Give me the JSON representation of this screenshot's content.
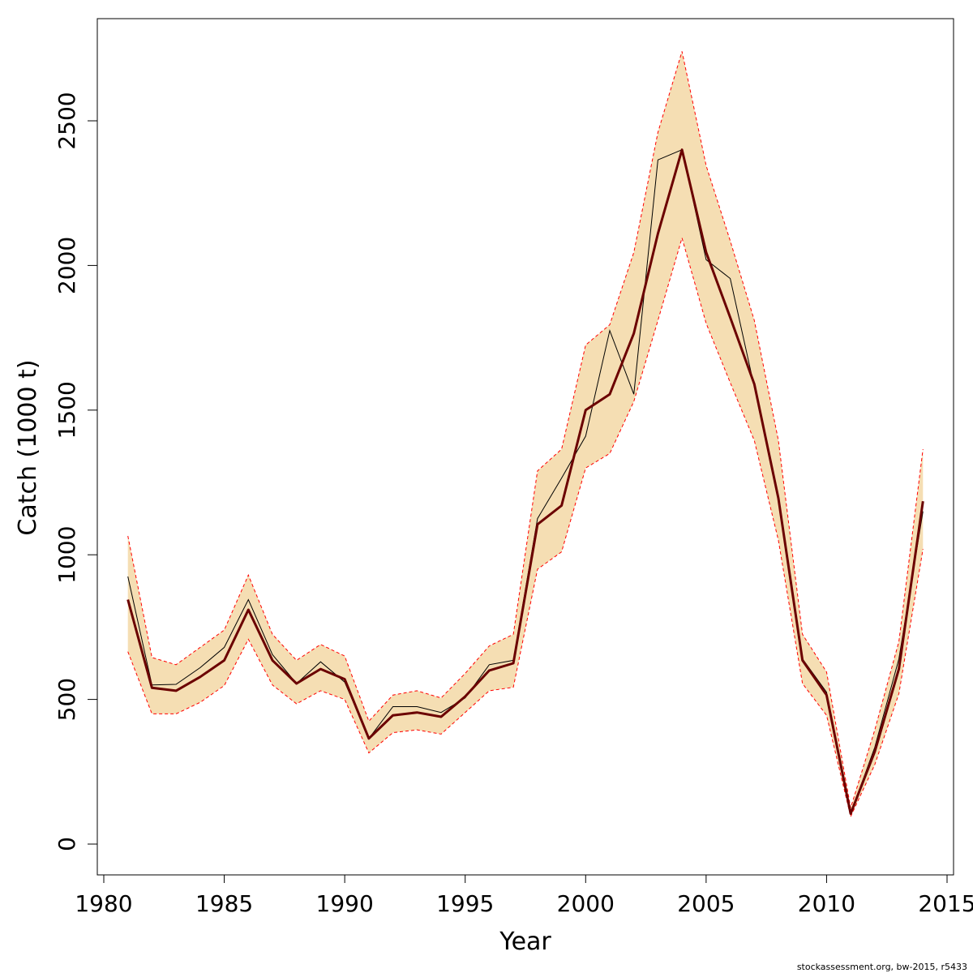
{
  "chart_data": {
    "type": "line",
    "xlabel": "Year",
    "ylabel": "Catch (1000 t)",
    "xlim": [
      1980,
      2015
    ],
    "ylim": [
      0,
      2750
    ],
    "xticks": [
      1980,
      1985,
      1990,
      1995,
      2000,
      2005,
      2010,
      2015
    ],
    "yticks": [
      0,
      500,
      1000,
      1500,
      2000,
      2500
    ],
    "x": [
      1981,
      1982,
      1983,
      1984,
      1985,
      1986,
      1987,
      1988,
      1989,
      1990,
      1991,
      1992,
      1993,
      1994,
      1995,
      1996,
      1997,
      1998,
      1999,
      2000,
      2001,
      2002,
      2003,
      2004,
      2005,
      2006,
      2007,
      2008,
      2009,
      2010,
      2011,
      2012,
      2013,
      2014
    ],
    "series": [
      {
        "role": "estimate",
        "values": [
          845,
          540,
          530,
          578,
          635,
          810,
          635,
          555,
          605,
          570,
          365,
          445,
          455,
          440,
          510,
          600,
          625,
          1105,
          1170,
          1500,
          1555,
          1765,
          2110,
          2400,
          2045,
          1820,
          1590,
          1195,
          635,
          515,
          105,
          320,
          605,
          1185
        ]
      },
      {
        "role": "observed",
        "values": [
          925,
          550,
          552,
          610,
          680,
          845,
          655,
          555,
          630,
          560,
          365,
          475,
          475,
          455,
          505,
          620,
          635,
          1125,
          1265,
          1410,
          1775,
          1555,
          2365,
          2400,
          2020,
          1955,
          1580,
          1185,
          640,
          525,
          105,
          335,
          640,
          1150
        ]
      },
      {
        "role": "upper",
        "values": [
          1065,
          645,
          620,
          680,
          740,
          930,
          725,
          635,
          690,
          650,
          425,
          515,
          530,
          505,
          590,
          685,
          725,
          1290,
          1365,
          1725,
          1795,
          2045,
          2460,
          2740,
          2345,
          2085,
          1810,
          1395,
          725,
          595,
          125,
          395,
          700,
          1365
        ]
      },
      {
        "role": "lower",
        "values": [
          665,
          450,
          450,
          490,
          548,
          708,
          550,
          485,
          530,
          500,
          315,
          385,
          395,
          380,
          455,
          530,
          542,
          950,
          1010,
          1300,
          1350,
          1530,
          1810,
          2095,
          1800,
          1595,
          1395,
          1050,
          555,
          445,
          95,
          275,
          520,
          1020
        ]
      }
    ],
    "colors": {
      "band": "#f5deb3",
      "band_edge": "#ff0000",
      "estimate": "#6b0000",
      "observed": "#000000"
    },
    "footer": "stockassessment.org, bw-2015, r5433"
  }
}
